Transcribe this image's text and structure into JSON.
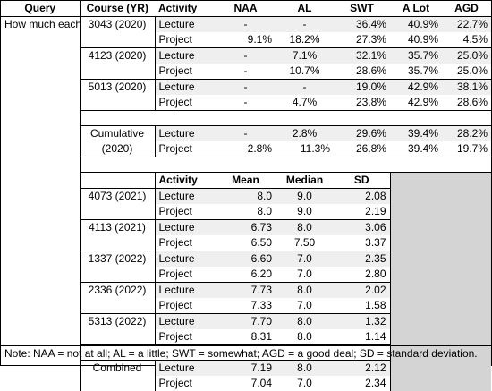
{
  "headers": {
    "query": "Query",
    "course": "Course (YR)",
    "activity": "Activity",
    "naa": "NAA",
    "al": "AL",
    "swt": "SWT",
    "alot": "A Lot",
    "agd": "AGD"
  },
  "query_text": "How much each…added to your understanding of IoT technology in computing.",
  "top_groups": [
    {
      "course": "3043 (2020)",
      "rows": [
        {
          "activity": "Lecture",
          "naa": "-",
          "al": "-",
          "swt": "36.4%",
          "alot": "40.9%",
          "agd": "22.7%"
        },
        {
          "activity": "Project",
          "naa": "9.1%",
          "al": "18.2%",
          "swt": "27.3%",
          "alot": "40.9%",
          "agd": "4.5%"
        }
      ]
    },
    {
      "course": "4123 (2020)",
      "rows": [
        {
          "activity": "Lecture",
          "naa": "-",
          "al": "7.1%",
          "swt": "32.1%",
          "alot": "35.7%",
          "agd": "25.0%"
        },
        {
          "activity": "Project",
          "naa": "-",
          "al": "10.7%",
          "swt": "28.6%",
          "alot": "35.7%",
          "agd": "25.0%"
        }
      ]
    },
    {
      "course": "5013 (2020)",
      "rows": [
        {
          "activity": "Lecture",
          "naa": "-",
          "al": "-",
          "swt": "19.0%",
          "alot": "42.9%",
          "agd": "38.1%"
        },
        {
          "activity": "Project",
          "naa": "-",
          "al": "4.7%",
          "swt": "23.8%",
          "alot": "42.9%",
          "agd": "28.6%"
        }
      ]
    }
  ],
  "cumulative": {
    "course_line1": "Cumulative",
    "course_line2": "(2020)",
    "rows": [
      {
        "activity": "Lecture",
        "naa": "-",
        "al": "2.8%",
        "swt": "29.6%",
        "alot": "39.4%",
        "agd": "28.2%"
      },
      {
        "activity": "Project",
        "naa": "2.8%",
        "al": "11.3%",
        "swt": "26.8%",
        "alot": "39.4%",
        "agd": "19.7%"
      }
    ]
  },
  "stats_headers": {
    "activity": "Activity",
    "mean": "Mean",
    "median": "Median",
    "sd": "SD"
  },
  "stats_groups": [
    {
      "course": "4073 (2021)",
      "rows": [
        {
          "activity": "Lecture",
          "mean": "8.0",
          "median": "9.0",
          "sd": "2.08"
        },
        {
          "activity": "Project",
          "mean": "8.0",
          "median": "9.0",
          "sd": "2.19"
        }
      ]
    },
    {
      "course": "4113 (2021)",
      "rows": [
        {
          "activity": "Lecture",
          "mean": "6.73",
          "median": "8.0",
          "sd": "3.06"
        },
        {
          "activity": "Project",
          "mean": "6.50",
          "median": "7.50",
          "sd": "3.37"
        }
      ]
    },
    {
      "course": "1337 (2022)",
      "rows": [
        {
          "activity": "Lecture",
          "mean": "6.60",
          "median": "7.0",
          "sd": "2.35"
        },
        {
          "activity": "Project",
          "mean": "6.20",
          "median": "7.0",
          "sd": "2.80"
        }
      ]
    },
    {
      "course": "2336 (2022)",
      "rows": [
        {
          "activity": "Lecture",
          "mean": "7.73",
          "median": "8.0",
          "sd": "2.02"
        },
        {
          "activity": "Project",
          "mean": "7.33",
          "median": "7.0",
          "sd": "1.58"
        }
      ]
    },
    {
      "course": "5313 (2022)",
      "rows": [
        {
          "activity": "Lecture",
          "mean": "7.70",
          "median": "8.0",
          "sd": "1.32"
        },
        {
          "activity": "Project",
          "mean": "8.31",
          "median": "8.0",
          "sd": "1.14"
        }
      ]
    }
  ],
  "combined": {
    "course": "Combined",
    "rows": [
      {
        "activity": "Lecture",
        "mean": "7.19",
        "median": "8.0",
        "sd": "2.12"
      },
      {
        "activity": "Project",
        "mean": "7.04",
        "median": "7.0",
        "sd": "2.34"
      }
    ]
  },
  "note": "Note: NAA = not at all; AL = a little; SWT = somewhat; AGD = a good deal; SD = standard deviation."
}
